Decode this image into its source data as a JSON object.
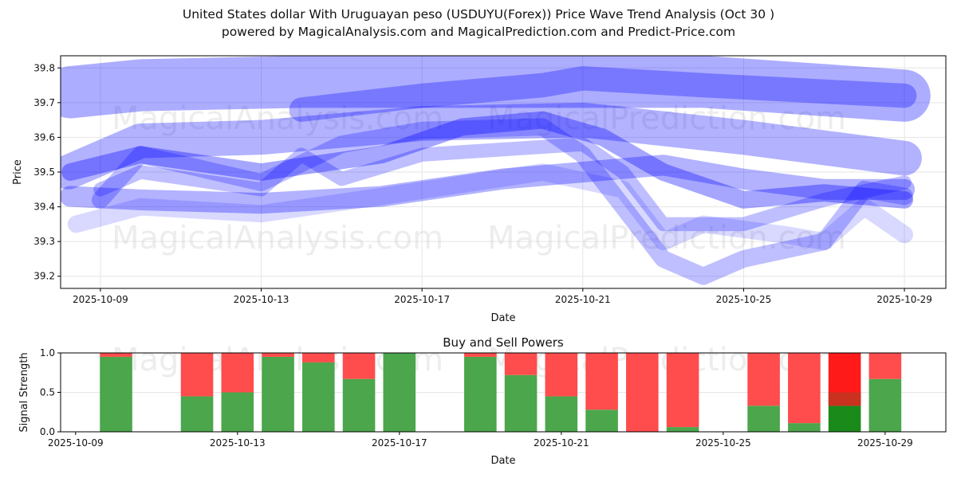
{
  "title_line1": "United States dollar With Uruguayan peso (USDUYU(Forex)) Price Wave Trend Analysis (Oct 30 )",
  "title_line2": "powered by MagicalAnalysis.com and MagicalPrediction.com and Predict-Price.com",
  "watermarks": [
    "MagicalAnalysis.com",
    "MagicalPrediction.com"
  ],
  "chart_data": [
    {
      "type": "area",
      "title": "",
      "xlabel": "Date",
      "ylabel": "Price",
      "base_date": "2025-10-09",
      "x_ticks": [
        "2025-10-09",
        "2025-10-13",
        "2025-10-17",
        "2025-10-21",
        "2025-10-25",
        "2025-10-29"
      ],
      "y_ticks": [
        "39.2",
        "39.3",
        "39.4",
        "39.5",
        "39.6",
        "39.7",
        "39.8"
      ],
      "xlim_days": [
        -0.99,
        21.03
      ],
      "ylim": [
        39.165,
        39.835
      ],
      "grid": true,
      "color": "#0000ff",
      "bands": [
        {
          "width": 0.15,
          "opacity": 0.32,
          "points": [
            [
              -0.75,
              39.73
            ],
            [
              1,
              39.75
            ],
            [
              5,
              39.76
            ],
            [
              10,
              39.76
            ],
            [
              15,
              39.76
            ],
            [
              20,
              39.72
            ]
          ]
        },
        {
          "width": 0.07,
          "opacity": 0.3,
          "points": [
            [
              5,
              39.68
            ],
            [
              8,
              39.72
            ],
            [
              11,
              39.75
            ],
            [
              12,
              39.77
            ],
            [
              15,
              39.75
            ],
            [
              20,
              39.72
            ]
          ]
        },
        {
          "width": 0.1,
          "opacity": 0.3,
          "points": [
            [
              -0.8,
              39.5
            ],
            [
              1,
              39.59
            ],
            [
              4,
              39.6
            ],
            [
              8,
              39.64
            ],
            [
              12,
              39.65
            ],
            [
              16,
              39.6
            ],
            [
              20,
              39.54
            ]
          ]
        },
        {
          "width": 0.05,
          "opacity": 0.35,
          "points": [
            [
              -0.75,
              39.5
            ],
            [
              1,
              39.55
            ],
            [
              4,
              39.5
            ],
            [
              7,
              39.55
            ],
            [
              9,
              39.63
            ],
            [
              11,
              39.65
            ],
            [
              12.5,
              39.6
            ],
            [
              14,
              39.5
            ],
            [
              16,
              39.42
            ],
            [
              18,
              39.44
            ],
            [
              20,
              39.42
            ]
          ]
        },
        {
          "width": 0.06,
          "opacity": 0.3,
          "points": [
            [
              -0.75,
              39.43
            ],
            [
              1,
              39.42
            ],
            [
              4,
              39.41
            ],
            [
              7,
              39.43
            ],
            [
              10,
              39.48
            ],
            [
              12,
              39.5
            ],
            [
              14,
              39.52
            ],
            [
              16,
              39.48
            ],
            [
              18,
              39.45
            ],
            [
              20,
              39.45
            ]
          ]
        },
        {
          "width": 0.05,
          "opacity": 0.25,
          "points": [
            [
              0,
              39.42
            ],
            [
              1,
              39.55
            ],
            [
              4,
              39.47
            ],
            [
              6,
              39.58
            ],
            [
              8,
              39.62
            ],
            [
              11,
              39.63
            ],
            [
              12,
              39.55
            ],
            [
              13,
              39.4
            ],
            [
              14,
              39.25
            ],
            [
              15,
              39.2
            ],
            [
              16,
              39.25
            ],
            [
              18,
              39.3
            ],
            [
              19,
              39.45
            ],
            [
              20,
              39.43
            ]
          ]
        },
        {
          "width": 0.05,
          "opacity": 0.15,
          "points": [
            [
              -0.6,
              39.35
            ],
            [
              1,
              39.4
            ],
            [
              4,
              39.38
            ],
            [
              7,
              39.43
            ],
            [
              11,
              39.5
            ],
            [
              13,
              39.45
            ],
            [
              14,
              39.3
            ],
            [
              15,
              39.35
            ],
            [
              17,
              39.32
            ],
            [
              18,
              39.3
            ],
            [
              19,
              39.4
            ],
            [
              20,
              39.32
            ]
          ]
        },
        {
          "width": 0.04,
          "opacity": 0.25,
          "points": [
            [
              0,
              39.45
            ],
            [
              1,
              39.5
            ],
            [
              4,
              39.45
            ],
            [
              5,
              39.55
            ],
            [
              6,
              39.48
            ],
            [
              8,
              39.55
            ],
            [
              12,
              39.58
            ],
            [
              13,
              39.5
            ],
            [
              14,
              39.35
            ],
            [
              16,
              39.35
            ],
            [
              18,
              39.42
            ],
            [
              20,
              39.47
            ]
          ]
        }
      ]
    },
    {
      "type": "bar",
      "title": "Buy and Sell Powers",
      "xlabel": "Date",
      "ylabel": "Signal Strength",
      "base_date": "2025-10-09",
      "x_ticks": [
        "2025-10-09",
        "2025-10-13",
        "2025-10-17",
        "2025-10-21",
        "2025-10-25",
        "2025-10-29"
      ],
      "y_ticks": [
        "0.0",
        "0.5",
        "1.0"
      ],
      "xlim_days": [
        -0.37,
        21.5
      ],
      "ylim": [
        0,
        1
      ],
      "buy_color": "#4ca64c",
      "sell_color": "#ff4c4c",
      "highlight_buy_color": "#1a8a1a",
      "highlight_sell_color": "#ff1a1a",
      "bars": [
        {
          "day": 1,
          "buy": 0.95
        },
        {
          "day": 3,
          "buy": 0.45
        },
        {
          "day": 4,
          "buy": 0.5
        },
        {
          "day": 5,
          "buy": 0.95
        },
        {
          "day": 6,
          "buy": 0.88
        },
        {
          "day": 7,
          "buy": 0.67
        },
        {
          "day": 8,
          "buy": 1.0
        },
        {
          "day": 10,
          "buy": 0.95
        },
        {
          "day": 11,
          "buy": 0.72
        },
        {
          "day": 12,
          "buy": 0.45
        },
        {
          "day": 13,
          "buy": 0.28
        },
        {
          "day": 14,
          "buy": 0.0
        },
        {
          "day": 15,
          "buy": 0.06
        },
        {
          "day": 17,
          "buy": 0.33
        },
        {
          "day": 18,
          "buy": 0.11
        },
        {
          "day": 19,
          "buy": 0.33,
          "highlight": true
        },
        {
          "day": 20,
          "buy": 0.67
        }
      ]
    }
  ]
}
